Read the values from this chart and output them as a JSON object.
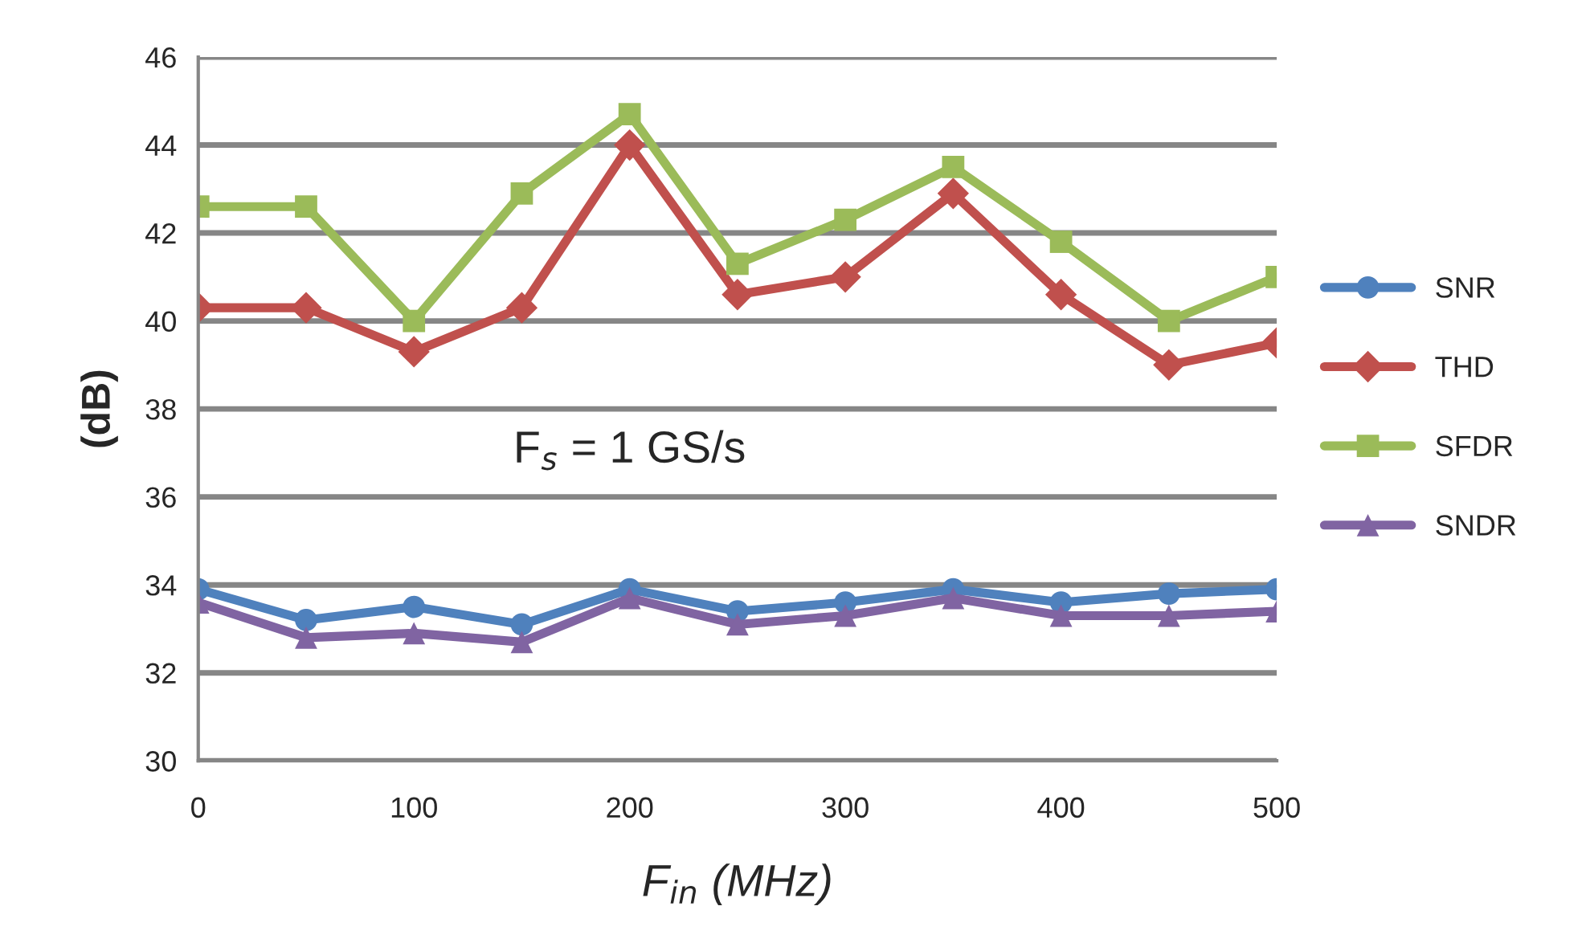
{
  "chart_data": {
    "type": "line",
    "ylabel": "(dB)",
    "xlabel": "F$_{in}$ (MHz)",
    "x": [
      0,
      50,
      100,
      150,
      200,
      250,
      300,
      350,
      400,
      450,
      500
    ],
    "xlim": [
      0,
      500
    ],
    "xticks": [
      0,
      100,
      200,
      300,
      400,
      500
    ],
    "ylim": [
      30,
      46
    ],
    "yticks": [
      30,
      32,
      34,
      36,
      38,
      40,
      42,
      44,
      46
    ],
    "grid": "y",
    "legend": "right",
    "annotations": [
      "F$_{s}$ = 1 GS/s"
    ],
    "series": [
      {
        "name": "SNR",
        "color": "#4f81bd",
        "marker": "circle",
        "values": [
          33.9,
          33.2,
          33.5,
          33.1,
          33.9,
          33.4,
          33.6,
          33.9,
          33.6,
          33.8,
          33.9
        ]
      },
      {
        "name": "THD",
        "color": "#c0504d",
        "marker": "diamond",
        "values": [
          40.3,
          40.3,
          39.3,
          40.3,
          44.0,
          40.6,
          41.0,
          42.9,
          40.6,
          39.0,
          39.5
        ]
      },
      {
        "name": "SFDR",
        "color": "#9bbb59",
        "marker": "square",
        "values": [
          42.6,
          42.6,
          40.0,
          42.9,
          44.7,
          41.3,
          42.3,
          43.5,
          41.8,
          40.0,
          41.0
        ]
      },
      {
        "name": "SNDR",
        "color": "#8064a2",
        "marker": "triangle",
        "values": [
          33.6,
          32.8,
          32.9,
          32.7,
          33.7,
          33.1,
          33.3,
          33.7,
          33.3,
          33.3,
          33.4
        ]
      }
    ]
  }
}
